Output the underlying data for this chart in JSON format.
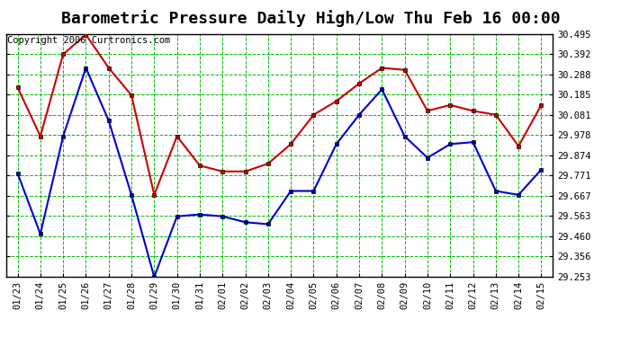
{
  "title": "Barometric Pressure Daily High/Low Thu Feb 16 00:00",
  "copyright": "Copyright 2006 Curtronics.com",
  "dates": [
    "01/23",
    "01/24",
    "01/25",
    "01/26",
    "01/27",
    "01/28",
    "01/29",
    "01/30",
    "01/31",
    "02/01",
    "02/02",
    "02/03",
    "02/04",
    "02/05",
    "02/06",
    "02/07",
    "02/08",
    "02/09",
    "02/10",
    "02/11",
    "02/12",
    "02/13",
    "02/14",
    "02/15"
  ],
  "high": [
    30.22,
    29.97,
    30.39,
    30.49,
    30.32,
    30.18,
    29.67,
    29.97,
    29.82,
    29.79,
    29.79,
    29.83,
    29.93,
    30.08,
    30.15,
    30.24,
    30.32,
    30.31,
    30.1,
    30.13,
    30.1,
    30.08,
    29.92,
    30.13
  ],
  "low": [
    29.78,
    29.47,
    29.97,
    30.32,
    30.05,
    29.67,
    29.25,
    29.56,
    29.57,
    29.56,
    29.53,
    29.52,
    29.69,
    29.69,
    29.93,
    30.08,
    30.21,
    29.97,
    29.86,
    29.93,
    29.94,
    29.69,
    29.67,
    29.8
  ],
  "high_color": "#cc0000",
  "low_color": "#0000cc",
  "grid_color": "#00bb00",
  "bg_color": "#ffffff",
  "ymin": 29.253,
  "ymax": 30.495,
  "yticks": [
    29.253,
    29.356,
    29.46,
    29.563,
    29.667,
    29.771,
    29.874,
    29.978,
    30.081,
    30.185,
    30.288,
    30.392,
    30.495
  ],
  "title_fontsize": 13,
  "copyright_fontsize": 7.5,
  "axis_fontsize": 7.5,
  "marker": "s",
  "marker_size": 3.5,
  "line_width": 1.5
}
